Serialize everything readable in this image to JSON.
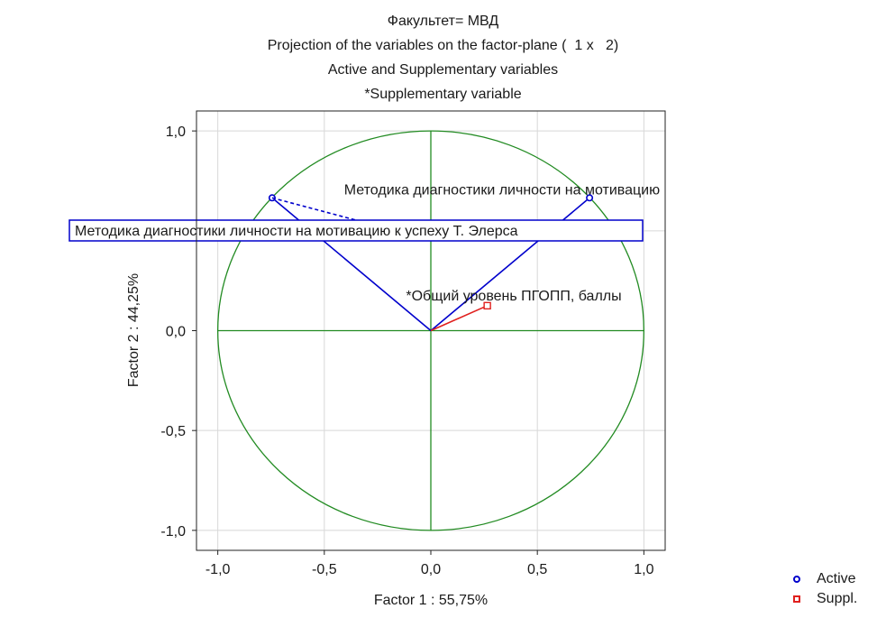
{
  "chart_data": {
    "type": "scatter",
    "title_lines": [
      "Факультет= МВД",
      "Projection of the variables on the factor-plane (  1 x   2)",
      "Active and Supplementary variables",
      "*Supplementary variable"
    ],
    "xlabel": "Factor 1 : 55,75%",
    "ylabel": "Factor 2 : 44,25%",
    "xlim": [
      -1.1,
      1.1
    ],
    "ylim": [
      -1.1,
      1.1
    ],
    "xticks": [
      -1.0,
      -0.5,
      0.0,
      0.5,
      1.0
    ],
    "yticks": [
      -1.0,
      -0.5,
      0.0,
      0.5,
      1.0
    ],
    "xtick_labels": [
      "-1,0",
      "-0,5",
      "0,0",
      "0,5",
      "1,0"
    ],
    "ytick_labels": [
      "-1,0",
      "-0,5",
      "0,0",
      "0,5",
      "1,0"
    ],
    "grid": true,
    "unit_circle": true,
    "series": [
      {
        "name": "Active",
        "marker": "circle",
        "color": "#0000cc",
        "points": [
          {
            "x": 0.745,
            "y": 0.665,
            "label": "Методика диагностики личности на мотивацию"
          },
          {
            "x": -0.745,
            "y": 0.665,
            "label": "Методика диагностики личности на мотивацию к успеху Т. Элерса"
          }
        ]
      },
      {
        "name": "Suppl.",
        "marker": "square",
        "color": "#e0201e",
        "points": [
          {
            "x": 0.265,
            "y": 0.125,
            "label": "*Общий уровень ПГОПП, баллы"
          }
        ]
      }
    ],
    "legend": {
      "position": "bottom-right",
      "entries": [
        "Active",
        "Suppl."
      ]
    }
  },
  "colors": {
    "axes": "#228b22",
    "active": "#0000cc",
    "suppl": "#e0201e",
    "grid": "#d8d8d8"
  }
}
